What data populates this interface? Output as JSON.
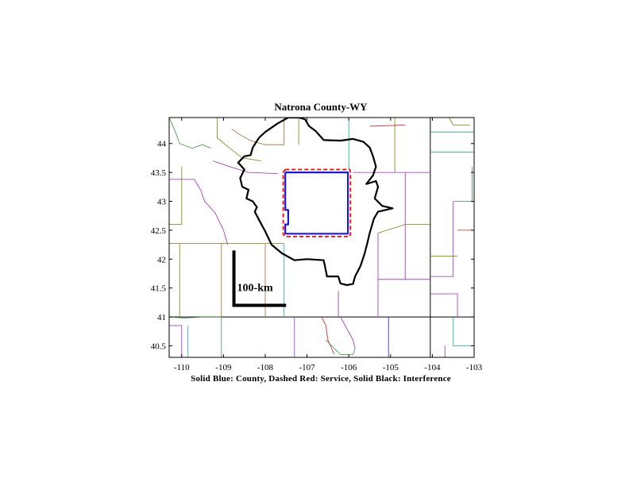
{
  "chart_data": {
    "type": "map",
    "title": "Natrona County-WY",
    "caption": "Solid Blue: County, Dashed Red: Service, Solid Black: Interference",
    "xlim": [
      -110.3,
      -103.0
    ],
    "ylim": [
      40.3,
      44.45
    ],
    "x_ticks": [
      -110,
      -109,
      -108,
      -107,
      -106,
      -105,
      -104,
      -103
    ],
    "x_tick_labels": [
      "-110",
      "-109",
      "-108",
      "-107",
      "-106",
      "-105",
      "-104",
      "-103"
    ],
    "y_ticks": [
      44,
      43.5,
      43,
      42.5,
      42,
      41.5,
      41,
      40.5
    ],
    "y_tick_labels": [
      "44",
      "43.5",
      "43",
      "42.5",
      "42",
      "41.5",
      "41",
      "40.5"
    ],
    "scale_bar": {
      "label": "100-km",
      "anchor": [
        -108.75,
        41.2
      ],
      "horizontal_end": -107.5,
      "vertical_end": 42.15
    },
    "colors": {
      "county": "#1a1ad6",
      "service": "#ff0000",
      "interference": "#000000",
      "state_border": "#000000"
    },
    "series": [
      {
        "name": "County",
        "style": "solid-blue",
        "points": [
          [
            -107.52,
            43.5
          ],
          [
            -106.02,
            43.5
          ],
          [
            -106.02,
            42.44
          ],
          [
            -107.52,
            42.44
          ],
          [
            -107.52,
            42.6
          ],
          [
            -107.45,
            42.6
          ],
          [
            -107.45,
            42.85
          ],
          [
            -107.52,
            42.85
          ],
          [
            -107.52,
            43.5
          ]
        ]
      },
      {
        "name": "Service",
        "style": "dashed-red",
        "points": [
          [
            -107.52,
            43.55
          ],
          [
            -105.98,
            43.55
          ],
          [
            -105.96,
            43.5
          ],
          [
            -105.96,
            42.43
          ],
          [
            -105.98,
            42.39
          ],
          [
            -107.52,
            42.39
          ],
          [
            -107.57,
            42.43
          ],
          [
            -107.57,
            43.5
          ],
          [
            -107.52,
            43.55
          ]
        ]
      },
      {
        "name": "Interference",
        "style": "solid-black",
        "points": [
          [
            -107.2,
            44.45
          ],
          [
            -107.05,
            44.42
          ],
          [
            -106.95,
            44.3
          ],
          [
            -106.8,
            44.22
          ],
          [
            -106.6,
            44.06
          ],
          [
            -106.2,
            44.05
          ],
          [
            -105.9,
            44.08
          ],
          [
            -105.65,
            44.03
          ],
          [
            -105.5,
            43.93
          ],
          [
            -105.42,
            43.78
          ],
          [
            -105.35,
            43.6
          ],
          [
            -105.42,
            43.45
          ],
          [
            -105.58,
            43.3
          ],
          [
            -105.35,
            43.35
          ],
          [
            -105.3,
            43.25
          ],
          [
            -105.38,
            43.05
          ],
          [
            -105.2,
            42.92
          ],
          [
            -104.95,
            42.88
          ],
          [
            -105.3,
            42.82
          ],
          [
            -105.4,
            42.7
          ],
          [
            -105.5,
            42.45
          ],
          [
            -105.55,
            42.3
          ],
          [
            -105.62,
            42.1
          ],
          [
            -105.72,
            41.88
          ],
          [
            -105.85,
            41.7
          ],
          [
            -105.9,
            41.57
          ],
          [
            -106.05,
            41.55
          ],
          [
            -106.2,
            41.58
          ],
          [
            -106.25,
            41.7
          ],
          [
            -106.52,
            41.7
          ],
          [
            -106.6,
            41.98
          ],
          [
            -107.0,
            42.0
          ],
          [
            -107.3,
            41.98
          ],
          [
            -107.6,
            42.1
          ],
          [
            -107.85,
            42.25
          ],
          [
            -108.0,
            42.48
          ],
          [
            -108.15,
            42.68
          ],
          [
            -108.25,
            42.82
          ],
          [
            -108.2,
            42.9
          ],
          [
            -108.3,
            43.0
          ],
          [
            -108.45,
            43.05
          ],
          [
            -108.4,
            43.2
          ],
          [
            -108.55,
            43.25
          ],
          [
            -108.6,
            43.4
          ],
          [
            -108.5,
            43.55
          ],
          [
            -108.65,
            43.67
          ],
          [
            -108.5,
            43.78
          ],
          [
            -108.35,
            43.8
          ],
          [
            -108.3,
            43.93
          ],
          [
            -108.15,
            44.1
          ],
          [
            -108.0,
            44.2
          ],
          [
            -107.7,
            44.35
          ],
          [
            -107.45,
            44.45
          ],
          [
            -107.2,
            44.45
          ]
        ]
      }
    ],
    "background_lines": [
      {
        "kind": "state-border",
        "color": "#000000",
        "points": [
          [
            -111.0,
            41.0
          ],
          [
            -102.0,
            41.0
          ]
        ]
      },
      {
        "kind": "state-border",
        "color": "#000000",
        "points": [
          [
            -104.05,
            40.3
          ],
          [
            -104.05,
            44.45
          ]
        ]
      },
      {
        "kind": "county",
        "color": "#7f7f00",
        "points": [
          [
            -109.15,
            44.45
          ],
          [
            -109.15,
            44.1
          ],
          [
            -108.9,
            43.95
          ],
          [
            -108.55,
            43.75
          ],
          [
            -108.1,
            43.7
          ]
        ]
      },
      {
        "kind": "county",
        "color": "#9a6a2a",
        "points": [
          [
            -108.8,
            44.25
          ],
          [
            -108.6,
            44.15
          ],
          [
            -108.35,
            44.05
          ],
          [
            -108.0,
            43.98
          ],
          [
            -107.55,
            43.98
          ],
          [
            -107.55,
            44.45
          ]
        ]
      },
      {
        "kind": "county",
        "color": "#7f7f00",
        "points": [
          [
            -107.2,
            44.45
          ],
          [
            -107.2,
            43.98
          ]
        ]
      },
      {
        "kind": "county",
        "color": "#1aa4a4",
        "points": [
          [
            -106.0,
            44.45
          ],
          [
            -106.0,
            43.55
          ]
        ]
      },
      {
        "kind": "county",
        "color": "#3f8f3f",
        "points": [
          [
            -110.3,
            44.45
          ],
          [
            -110.15,
            44.2
          ],
          [
            -110.05,
            44.0
          ],
          [
            -109.75,
            43.92
          ],
          [
            -109.5,
            43.98
          ],
          [
            -109.3,
            43.92
          ]
        ]
      },
      {
        "kind": "county",
        "color": "#9a2ab4",
        "points": [
          [
            -109.25,
            43.7
          ],
          [
            -108.85,
            43.6
          ],
          [
            -108.4,
            43.5
          ],
          [
            -107.7,
            43.48
          ]
        ]
      },
      {
        "kind": "county",
        "color": "#9a2ab4",
        "points": [
          [
            -110.3,
            43.38
          ],
          [
            -109.7,
            43.38
          ],
          [
            -109.55,
            43.2
          ],
          [
            -109.45,
            43.0
          ],
          [
            -109.2,
            42.8
          ],
          [
            -109.0,
            42.5
          ],
          [
            -108.9,
            42.25
          ]
        ]
      },
      {
        "kind": "county",
        "color": "#7f7f00",
        "points": [
          [
            -110.0,
            43.6
          ],
          [
            -110.0,
            42.6
          ],
          [
            -110.3,
            42.6
          ]
        ]
      },
      {
        "kind": "county",
        "color": "#9a6a2a",
        "points": [
          [
            -110.3,
            42.27
          ],
          [
            -109.05,
            42.27
          ],
          [
            -109.05,
            41.0
          ]
        ]
      },
      {
        "kind": "county",
        "color": "#7f7f00",
        "points": [
          [
            -110.05,
            42.27
          ],
          [
            -110.05,
            41.0
          ]
        ]
      },
      {
        "kind": "county",
        "color": "#1aa4a4",
        "points": [
          [
            -107.55,
            42.27
          ],
          [
            -107.55,
            41.0
          ]
        ]
      },
      {
        "kind": "county",
        "color": "#9a6a2a",
        "points": [
          [
            -108.0,
            42.27
          ],
          [
            -108.0,
            41.0
          ]
        ]
      },
      {
        "kind": "county",
        "color": "#7f7f00",
        "points": [
          [
            -109.05,
            42.27
          ],
          [
            -107.55,
            42.27
          ]
        ]
      },
      {
        "kind": "county",
        "color": "#9a2ab4",
        "points": [
          [
            -106.25,
            41.45
          ],
          [
            -106.25,
            41.0
          ]
        ]
      },
      {
        "kind": "county",
        "color": "#9a2ab4",
        "points": [
          [
            -105.3,
            42.45
          ],
          [
            -105.3,
            41.0
          ]
        ]
      },
      {
        "kind": "county",
        "color": "#7f7f00",
        "points": [
          [
            -105.3,
            42.45
          ],
          [
            -104.65,
            42.6
          ],
          [
            -104.05,
            42.6
          ]
        ]
      },
      {
        "kind": "county",
        "color": "#9a2ab4",
        "points": [
          [
            -104.65,
            43.5
          ],
          [
            -104.65,
            41.65
          ],
          [
            -104.05,
            41.65
          ]
        ]
      },
      {
        "kind": "county",
        "color": "#9a2ab4",
        "points": [
          [
            -105.3,
            41.65
          ],
          [
            -104.65,
            41.65
          ]
        ]
      },
      {
        "kind": "county",
        "color": "#7f7f00",
        "points": [
          [
            -104.9,
            44.45
          ],
          [
            -104.9,
            43.5
          ]
        ]
      },
      {
        "kind": "county",
        "color": "#d01a1a",
        "points": [
          [
            -105.5,
            44.3
          ],
          [
            -104.65,
            44.32
          ]
        ]
      },
      {
        "kind": "county",
        "color": "#9a2ab4",
        "points": [
          [
            -105.9,
            43.5
          ],
          [
            -104.05,
            43.5
          ]
        ]
      },
      {
        "kind": "county",
        "color": "#7f7f00",
        "points": [
          [
            -103.6,
            44.45
          ],
          [
            -103.5,
            44.32
          ],
          [
            -103.1,
            44.32
          ]
        ]
      },
      {
        "kind": "county",
        "color": "#1aa4a4",
        "points": [
          [
            -104.05,
            44.2
          ],
          [
            -103.0,
            44.2
          ]
        ]
      },
      {
        "kind": "county",
        "color": "#1aa4a4",
        "points": [
          [
            -104.05,
            43.85
          ],
          [
            -103.0,
            43.85
          ]
        ]
      },
      {
        "kind": "county",
        "color": "#3f8f3f",
        "points": [
          [
            -103.05,
            43.6
          ],
          [
            -103.05,
            43.0
          ],
          [
            -103.5,
            43.0
          ]
        ]
      },
      {
        "kind": "county",
        "color": "#9a2ab4",
        "points": [
          [
            -103.5,
            43.0
          ],
          [
            -103.5,
            41.7
          ],
          [
            -104.05,
            41.7
          ]
        ]
      },
      {
        "kind": "county",
        "color": "#7f7f00",
        "points": [
          [
            -104.05,
            42.05
          ],
          [
            -103.4,
            42.05
          ]
        ]
      },
      {
        "kind": "county",
        "color": "#9a2ab4",
        "points": [
          [
            -104.05,
            41.4
          ],
          [
            -103.4,
            41.4
          ],
          [
            -103.4,
            41.0
          ]
        ]
      },
      {
        "kind": "county",
        "color": "#d01a1a",
        "points": [
          [
            -103.4,
            42.5
          ],
          [
            -103.0,
            42.5
          ]
        ]
      },
      {
        "kind": "county",
        "color": "#3f8f3f",
        "points": [
          [
            -110.3,
            41.0
          ],
          [
            -109.95,
            40.98
          ],
          [
            -109.5,
            41.0
          ],
          [
            -109.05,
            41.0
          ],
          [
            -109.05,
            40.3
          ]
        ]
      },
      {
        "kind": "county",
        "color": "#9a2ab4",
        "points": [
          [
            -110.3,
            40.85
          ],
          [
            -110.0,
            40.85
          ],
          [
            -110.0,
            40.3
          ]
        ]
      },
      {
        "kind": "county",
        "color": "#1aa4a4",
        "points": [
          [
            -109.85,
            40.85
          ],
          [
            -109.85,
            40.3
          ]
        ]
      },
      {
        "kind": "county",
        "color": "#7f7f00",
        "points": [
          [
            -109.05,
            40.3
          ],
          [
            -108.2,
            40.3
          ]
        ]
      },
      {
        "kind": "county",
        "color": "#9a2ab4",
        "points": [
          [
            -107.3,
            41.0
          ],
          [
            -107.3,
            40.3
          ]
        ]
      },
      {
        "kind": "county",
        "color": "#d01a1a",
        "points": [
          [
            -106.65,
            41.0
          ],
          [
            -106.55,
            40.85
          ],
          [
            -106.5,
            40.6
          ],
          [
            -106.35,
            40.35
          ]
        ]
      },
      {
        "kind": "county",
        "color": "#3f8f3f",
        "points": [
          [
            -106.55,
            40.6
          ],
          [
            -106.2,
            40.35
          ],
          [
            -105.9,
            40.35
          ],
          [
            -105.85,
            40.45
          ]
        ]
      },
      {
        "kind": "county",
        "color": "#9a2ab4",
        "points": [
          [
            -106.2,
            41.0
          ],
          [
            -105.9,
            40.6
          ],
          [
            -105.85,
            40.45
          ]
        ]
      },
      {
        "kind": "county",
        "color": "#1a1ad6",
        "points": [
          [
            -105.05,
            41.0
          ],
          [
            -105.05,
            40.3
          ]
        ]
      },
      {
        "kind": "county",
        "color": "#1aa4a4",
        "points": [
          [
            -103.5,
            41.0
          ],
          [
            -103.5,
            40.5
          ],
          [
            -103.05,
            40.5
          ]
        ]
      },
      {
        "kind": "county",
        "color": "#9a2ab4",
        "points": [
          [
            -103.05,
            40.3
          ],
          [
            -103.7,
            40.3
          ],
          [
            -103.7,
            40.5
          ]
        ]
      }
    ]
  }
}
